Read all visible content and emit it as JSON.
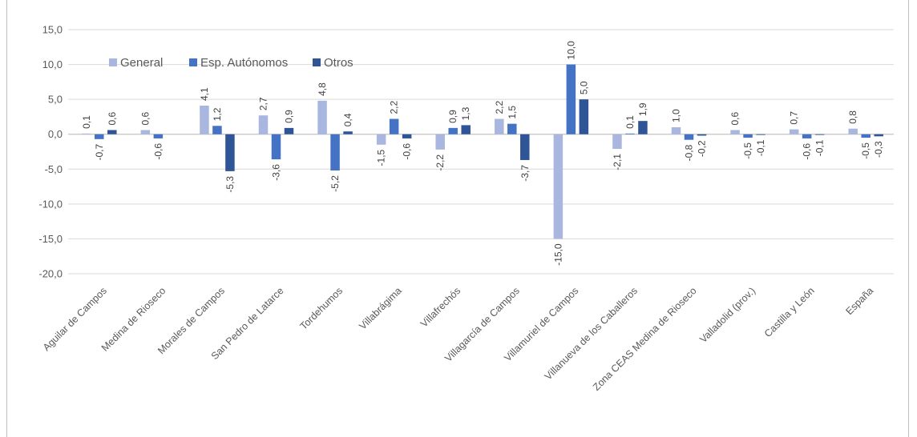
{
  "chart_data": {
    "type": "bar",
    "title": "",
    "categories": [
      "Aguilar de Campos",
      "Medina de Rioseco",
      "Morales de Campos",
      "San Pedro de Latarce",
      "Tordehumos",
      "Villabrágima",
      "Villafrechós",
      "Villagarcía de Campos",
      "Villamuriel de Campos",
      "Villanueva de los Caballeros",
      "Zona CEAS Medina de Rioseco",
      "Valladolid (prov.)",
      "Castilla y León",
      "España"
    ],
    "series": [
      {
        "name": "General",
        "color": "#a9b7e0",
        "values": [
          0.1,
          0.6,
          4.1,
          2.7,
          4.8,
          -1.5,
          -2.2,
          2.2,
          -15.0,
          -2.1,
          1.0,
          0.6,
          0.7,
          0.8
        ],
        "labels": [
          "0,1",
          "0,6",
          "4,1",
          "2,7",
          "4,8",
          "-1,5",
          "-2,2",
          "2,2",
          "-15,0",
          "-2,1",
          "1,0",
          "0,6",
          "0,7",
          "0,8"
        ]
      },
      {
        "name": "Esp. Autónomos",
        "color": "#4472c4",
        "values": [
          -0.7,
          -0.6,
          1.2,
          -3.6,
          -5.2,
          2.2,
          0.9,
          1.5,
          10.0,
          0.1,
          -0.8,
          -0.5,
          -0.6,
          -0.5
        ],
        "labels": [
          "-0,7",
          "-0,6",
          "1,2",
          "-3,6",
          "-5,2",
          "2,2",
          "0,9",
          "1,5",
          "10,0",
          "0,1",
          "-0,8",
          "-0,5",
          "-0,6",
          "-0,5"
        ]
      },
      {
        "name": "Otros",
        "color": "#2f5597",
        "values": [
          0.6,
          null,
          -5.3,
          0.9,
          0.4,
          -0.6,
          1.3,
          -3.7,
          5.0,
          1.9,
          -0.2,
          -0.1,
          -0.1,
          -0.3
        ],
        "labels": [
          "0,6",
          "",
          "-5,3",
          "0,9",
          "0,4",
          "-0,6",
          "1,3",
          "-3,7",
          "5,0",
          "1,9",
          "-0,2",
          "-0,1",
          "-0,1",
          "-0,3"
        ]
      }
    ],
    "ylim": [
      -20,
      15
    ],
    "yticks": [
      "15,0",
      "10,0",
      "5,0",
      "0,0",
      "-5,0",
      "-10,0",
      "-15,0",
      "-20,0"
    ],
    "grid": true,
    "legend_position": "top-left"
  }
}
